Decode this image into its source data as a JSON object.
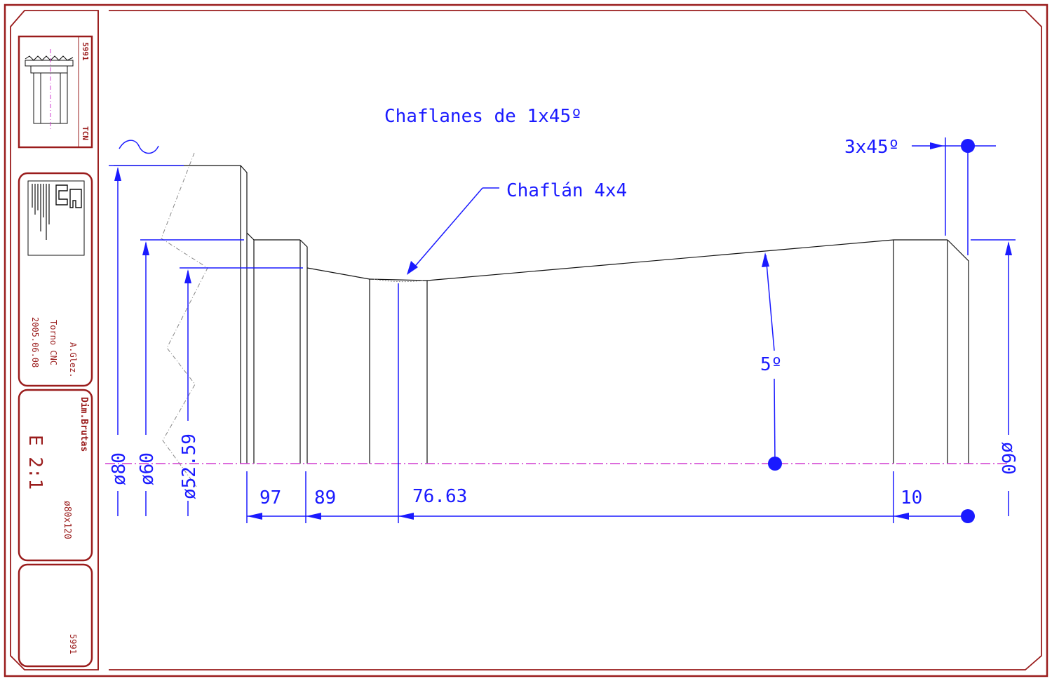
{
  "notes": {
    "chamfers_general": "Chaflanes de 1x45º",
    "chamfer_4x4": "Chaflán 4x4",
    "chamfer_3x45": "3x45º",
    "taper_angle": "5º"
  },
  "dimensions": {
    "d80": "ø80",
    "d60_left": "ø60",
    "d52_59": "ø52.59",
    "d60_right": "ø60",
    "len_97": "97",
    "len_89": "89",
    "len_76_63": "76.63",
    "len_10": "10"
  },
  "title_block": {
    "thumb_code": "5991",
    "thumb_kind": "TCN",
    "author": "A.Glez.",
    "machine": "Torno CNC",
    "date": "2005.06.08",
    "rough_label": "Dim.Brutas",
    "scale": "E 2:1",
    "stock": "ø80x120",
    "part_number": "5991"
  },
  "colors": {
    "frame": "#9a1c1c",
    "dimension": "#1a1aff",
    "axis": "#d13cd1",
    "part": "#111111"
  }
}
